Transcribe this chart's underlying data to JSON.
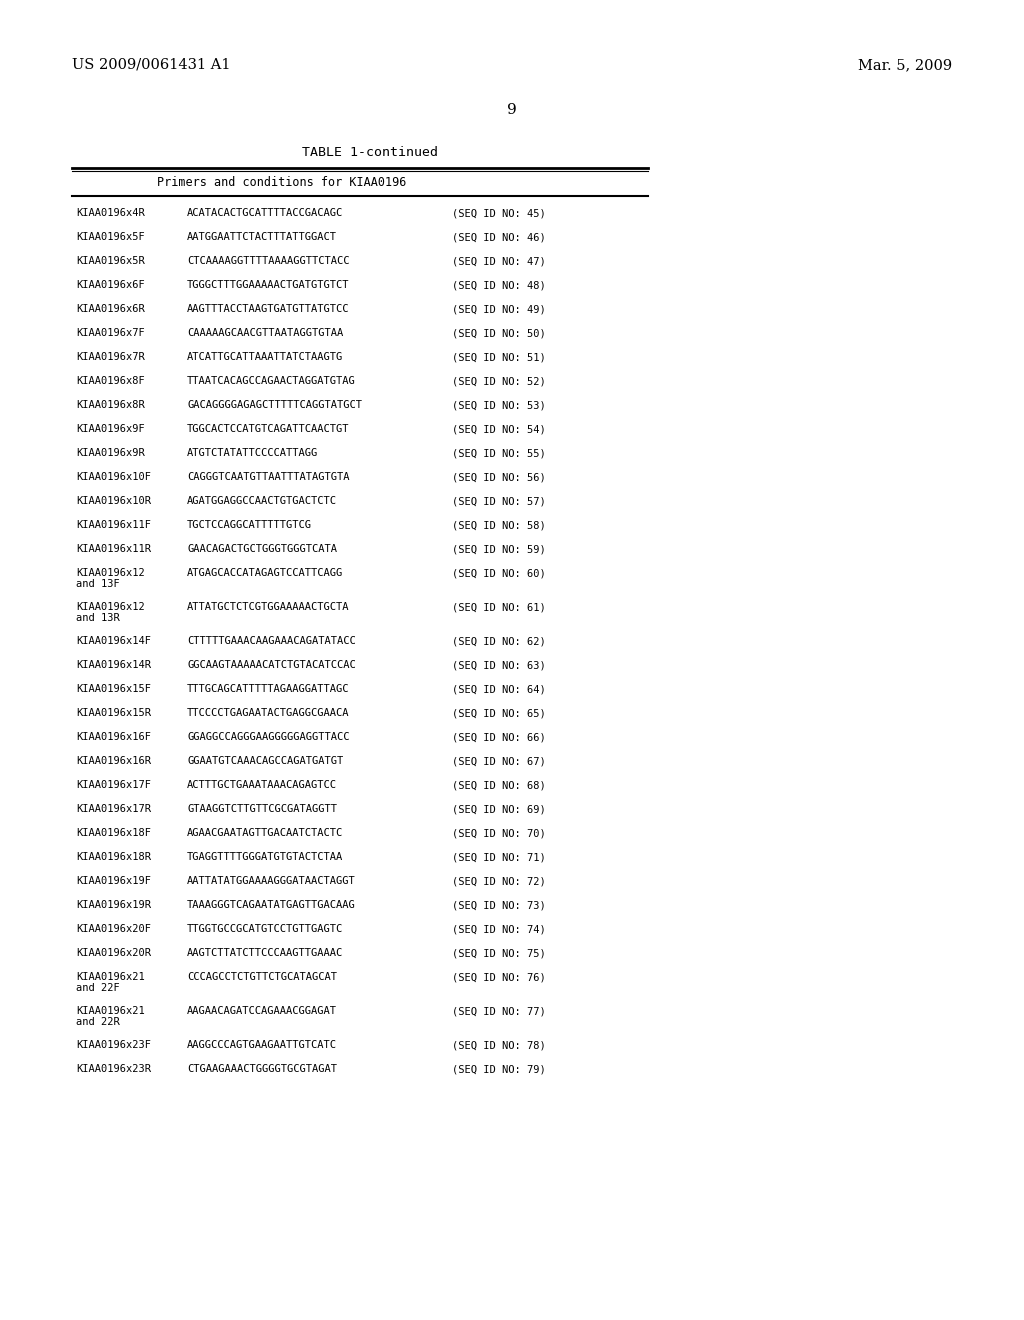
{
  "header_left": "US 2009/0061431 A1",
  "header_right": "Mar. 5, 2009",
  "page_number": "9",
  "table_title": "TABLE 1-continued",
  "table_subtitle": "Primers and conditions for KIAA0196",
  "background_color": "#ffffff",
  "text_color": "#000000",
  "rows": [
    {
      "label": "KIAA0196x4R",
      "sequence": "ACATACACTGCATTTTACCGACAGC",
      "seq_id": "45"
    },
    {
      "label": "KIAA0196x5F",
      "sequence": "AATGGAATTCTACTTTATTGGACT",
      "seq_id": "46"
    },
    {
      "label": "KIAA0196x5R",
      "sequence": "CTCAAAAGGTTTTAAAAGGTTCTACC",
      "seq_id": "47"
    },
    {
      "label": "KIAA0196x6F",
      "sequence": "TGGGCTTTGGAAAAACTGATGTGTCT",
      "seq_id": "48"
    },
    {
      "label": "KIAA0196x6R",
      "sequence": "AAGTTTACCTAAGTGATGTTATGTCC",
      "seq_id": "49"
    },
    {
      "label": "KIAA0196x7F",
      "sequence": "CAAAAAGCAACGTTAATAGGTGTAA",
      "seq_id": "50"
    },
    {
      "label": "KIAA0196x7R",
      "sequence": "ATCATTGCATTAAATTATCTAAGTG",
      "seq_id": "51"
    },
    {
      "label": "KIAA0196x8F",
      "sequence": "TTAATCACAGCCAGAACTAGGATGTAG",
      "seq_id": "52"
    },
    {
      "label": "KIAA0196x8R",
      "sequence": "GACAGGGGAGAGCTTTTTCAGGTATGCT",
      "seq_id": "53"
    },
    {
      "label": "KIAA0196x9F",
      "sequence": "TGGCACTCCATGTCAGATTCAACTGT",
      "seq_id": "54"
    },
    {
      "label": "KIAA0196x9R",
      "sequence": "ATGTCTATATTCCCCATTAGG",
      "seq_id": "55"
    },
    {
      "label": "KIAA0196x10F",
      "sequence": "CAGGGTCAATGTTAATTTATAGTGTA",
      "seq_id": "56"
    },
    {
      "label": "KIAA0196x10R",
      "sequence": "AGATGGAGGCCAACTGTGACTCTC",
      "seq_id": "57"
    },
    {
      "label": "KIAA0196x11F",
      "sequence": "TGCTCCAGGCATTTTTGTCG",
      "seq_id": "58"
    },
    {
      "label": "KIAA0196x11R",
      "sequence": "GAACAGACTGCTGGGTGGGTCATA",
      "seq_id": "59"
    },
    {
      "label": "KIAA0196x12\nand 13F",
      "sequence": "ATGAGCACCATAGAGTCCATTCAGG",
      "seq_id": "60"
    },
    {
      "label": "KIAA0196x12\nand 13R",
      "sequence": "ATTATGCTCTCGTGGAAAAACTGCTA",
      "seq_id": "61"
    },
    {
      "label": "KIAA0196x14F",
      "sequence": "CTTTTTGAAACAAGAAACAGATATACC",
      "seq_id": "62"
    },
    {
      "label": "KIAA0196x14R",
      "sequence": "GGCAAGTAAAAACATCTGTACATCCAC",
      "seq_id": "63"
    },
    {
      "label": "KIAA0196x15F",
      "sequence": "TTTGCAGCATTTTTAGAAGGATTAGC",
      "seq_id": "64"
    },
    {
      "label": "KIAA0196x15R",
      "sequence": "TTCCCCTGAGAATACTGAGGCGAACA",
      "seq_id": "65"
    },
    {
      "label": "KIAA0196x16F",
      "sequence": "GGAGGCCAGGGAAGGGGGAGGTTACC",
      "seq_id": "66"
    },
    {
      "label": "KIAA0196x16R",
      "sequence": "GGAATGTCAAACAGCCAGATGATGT",
      "seq_id": "67"
    },
    {
      "label": "KIAA0196x17F",
      "sequence": "ACTTTGCTGAAATAAACAGAGTCC",
      "seq_id": "68"
    },
    {
      "label": "KIAA0196x17R",
      "sequence": "GTAAGGTCTTGTTCGCGATAGGTT",
      "seq_id": "69"
    },
    {
      "label": "KIAA0196x18F",
      "sequence": "AGAACGAATAGTTGACAATCTACTC",
      "seq_id": "70"
    },
    {
      "label": "KIAA0196x18R",
      "sequence": "TGAGGTTTTGGGATGTGTACTCTAA",
      "seq_id": "71"
    },
    {
      "label": "KIAA0196x19F",
      "sequence": "AATTATATGGAAAAGGGATAACTAGGT",
      "seq_id": "72"
    },
    {
      "label": "KIAA0196x19R",
      "sequence": "TAAAGGGTCAGAATATGAGTTGACAAG",
      "seq_id": "73"
    },
    {
      "label": "KIAA0196x20F",
      "sequence": "TTGGTGCCGCATGTCCTGTTGAGTC",
      "seq_id": "74"
    },
    {
      "label": "KIAA0196x20R",
      "sequence": "AAGTCTTATCTTCCCAAGTTGAAAC",
      "seq_id": "75"
    },
    {
      "label": "KIAA0196x21\nand 22F",
      "sequence": "CCCAGCCTCTGTTCTGCATAGCAT",
      "seq_id": "76"
    },
    {
      "label": "KIAA0196x21\nand 22R",
      "sequence": "AAGAACAGATCCAGAAACGGAGAT",
      "seq_id": "77"
    },
    {
      "label": "KIAA0196x23F",
      "sequence": "AAGGCCCAGTGAAGAATTGTCATC",
      "seq_id": "78"
    },
    {
      "label": "KIAA0196x23R",
      "sequence": "CTGAAGAAACTGGGGTGCGTAGAT",
      "seq_id": "79"
    }
  ]
}
